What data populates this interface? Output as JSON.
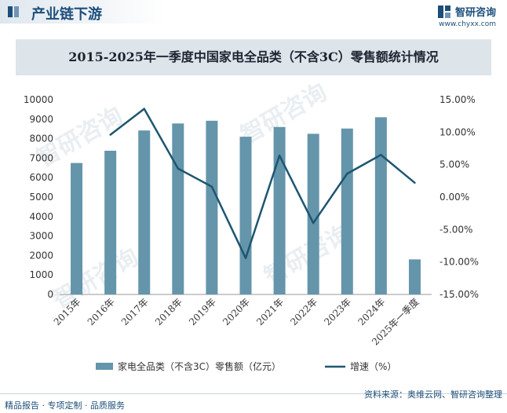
{
  "header": {
    "section_title": "产业链下游",
    "brand_name": "智研咨询",
    "brand_url": "www.chyxx.com"
  },
  "watermark": {
    "text": "智研咨询"
  },
  "footer": {
    "left": "精品报告 · 专项定制 · 品质服务",
    "right": "资料来源：奥维云网、智研咨询整理"
  },
  "colors": {
    "bar": "#6495ab",
    "line": "#1e5670",
    "axis": "#333333"
  },
  "chart_data": {
    "type": "bar",
    "title": "2015-2025年一季度中国家电全品类（不含3C）零售额统计情况",
    "categories": [
      "2015年",
      "2016年",
      "2017年",
      "2018年",
      "2019年",
      "2020年",
      "2021年",
      "2022年",
      "2023年",
      "2024年",
      "2025年一季度"
    ],
    "series": [
      {
        "name": "家电全品类（不含3C）零售额（亿元）",
        "type": "bar",
        "axis": "left",
        "values": [
          6750,
          7380,
          8420,
          8780,
          8920,
          8100,
          8600,
          8250,
          8520,
          9100,
          1800
        ]
      },
      {
        "name": "增速（%）",
        "type": "line",
        "axis": "right",
        "values": [
          null,
          9.6,
          13.6,
          4.4,
          1.6,
          -9.4,
          6.4,
          -4.0,
          3.6,
          6.5,
          2.2
        ]
      }
    ],
    "ylim_left": [
      0,
      10000
    ],
    "yticks_left": [
      "0",
      "1000",
      "2000",
      "3000",
      "4000",
      "5000",
      "6000",
      "7000",
      "8000",
      "9000",
      "10000"
    ],
    "ylim_right": [
      -15,
      15
    ],
    "yticks_right": [
      "-15.00%",
      "-10.00%",
      "-5.00%",
      "0.00%",
      "5.00%",
      "10.00%",
      "15.00%"
    ],
    "legend_position": "bottom"
  }
}
